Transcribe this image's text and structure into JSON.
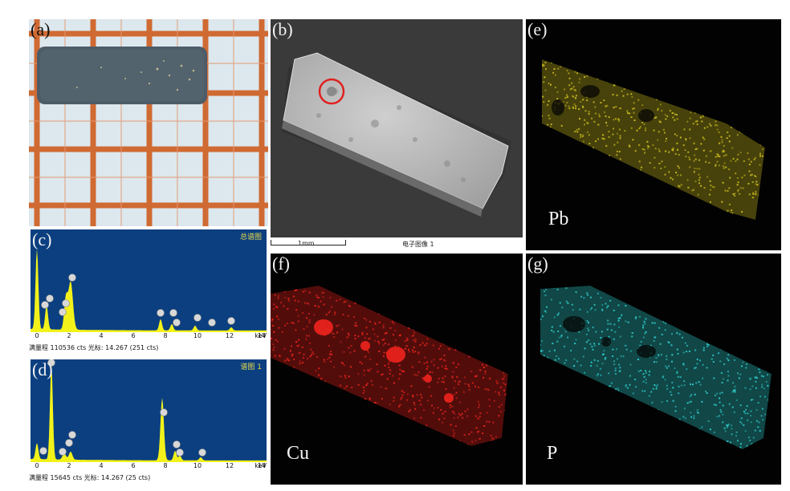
{
  "panels": {
    "a": {
      "label": "(a)"
    },
    "b": {
      "label": "(b)",
      "scale_bar": "1mm",
      "image_caption": "电子图像 1"
    },
    "c": {
      "label": "(c)",
      "spectrum_title": "总谱图",
      "footer": "满量程 110536 cts 光标: 14.267  (251 cts)",
      "axis_unit": "keV",
      "ticks": [
        "0",
        "2",
        "4",
        "6",
        "8",
        "10",
        "12",
        "14"
      ]
    },
    "d": {
      "label": "(d)",
      "spectrum_title": "谱图 1",
      "footer": "满量程 15645 cts 光标: 14.267  (25 cts)",
      "axis_unit": "keV",
      "ticks": [
        "0",
        "2",
        "4",
        "6",
        "8",
        "10",
        "12",
        "14"
      ]
    },
    "e": {
      "label": "(e)",
      "element": "Pb",
      "color": "#c9bb1e"
    },
    "f": {
      "label": "(f)",
      "element": "Cu",
      "color": "#e8231c"
    },
    "g": {
      "label": "(g)",
      "element": "P",
      "color": "#2ec9c9"
    }
  },
  "colors": {
    "spectrum_bg": "#0b3f80",
    "spectrum_peak": "#f2f21a",
    "grid_line": "#d2622a",
    "paper": "#dfe9ee",
    "sample_photo": "#4a5a66",
    "sem_bg": "#3c3c3c",
    "sem_sample": "#b4b4b4",
    "marker_circle": "#e02020"
  }
}
